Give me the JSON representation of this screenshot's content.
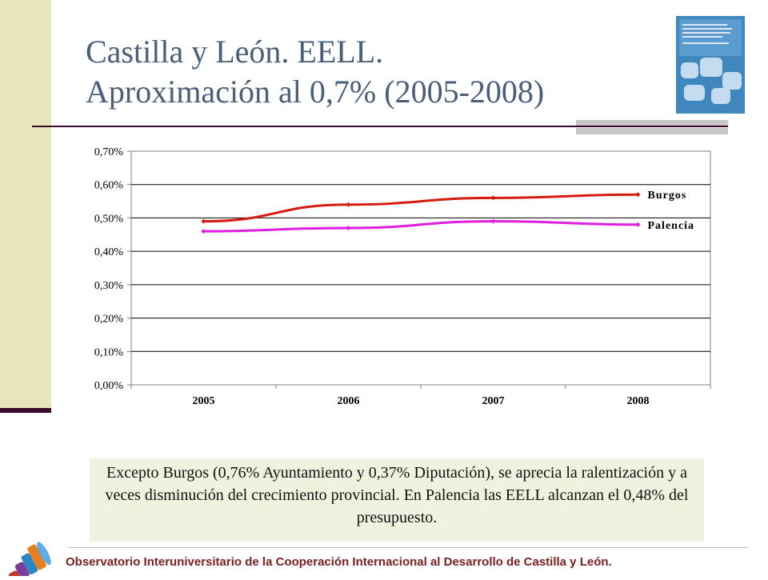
{
  "slide": {
    "title_line1": "Castilla y León. EELL.",
    "title_line2": "Aproximación al 0,7% (2005-2008)",
    "note": "Excepto Burgos (0,76% Ayuntamiento y 0,37% Diputación), se aprecia la ralentización y a veces disminución del crecimiento provincial. En Palencia las EELL alcanzan el 0,48% del presupuesto.",
    "footer": "Observatorio Interuniversitario de la Cooperación Internacional al Desarrollo de Castilla y León."
  },
  "colors": {
    "accent_bar": "#e8e4bc",
    "rule": "#3a0a2e",
    "title": "#4a5d7a",
    "burgos": "#d61a0c",
    "palencia": "#e01ee0",
    "footer": "#7a1f1f"
  },
  "chart_data": {
    "type": "line",
    "categories": [
      "2005",
      "2006",
      "2007",
      "2008"
    ],
    "series": [
      {
        "name": "Burgos",
        "values": [
          0.49,
          0.54,
          0.56,
          0.57
        ],
        "color": "#d61a0c"
      },
      {
        "name": "Palencia",
        "values": [
          0.46,
          0.47,
          0.49,
          0.48
        ],
        "color": "#e01ee0"
      }
    ],
    "y_ticks": [
      "0,00%",
      "0,10%",
      "0,20%",
      "0,30%",
      "0,40%",
      "0,50%",
      "0,60%",
      "0,70%"
    ],
    "ylim": [
      0,
      0.7
    ],
    "grid": true,
    "legend": "series labels at line ends",
    "title": "",
    "xlabel": "",
    "ylabel": ""
  }
}
